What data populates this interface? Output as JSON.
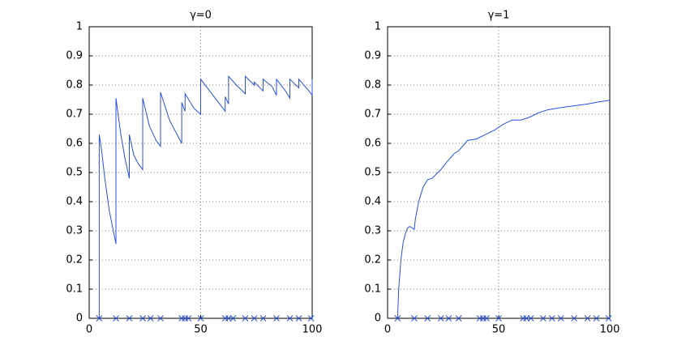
{
  "chart_data": [
    {
      "type": "line",
      "title": "γ=0",
      "xlim": [
        0,
        100
      ],
      "ylim": [
        0,
        1
      ],
      "xticks": [
        0,
        50,
        100
      ],
      "yticks": [
        0,
        0.1,
        0.2,
        0.3,
        0.4,
        0.5,
        0.6,
        0.7,
        0.8,
        0.9,
        1
      ],
      "grid": true,
      "series": [
        {
          "color": "#2a4fe0",
          "marker": "none",
          "x": [
            4.5,
            4.5,
            5.5,
            7,
            9,
            12,
            12,
            14,
            16,
            18,
            18,
            20,
            22,
            24,
            24,
            27,
            30,
            32,
            32,
            36,
            41.5,
            41.5,
            43,
            43,
            45,
            47,
            50,
            50,
            55,
            61,
            61,
            62.5,
            62.5,
            66,
            70,
            70,
            74,
            74,
            78,
            78,
            82,
            84,
            84,
            88,
            90,
            90,
            94,
            94,
            98,
            100,
            100
          ],
          "values": [
            0,
            0.63,
            0.58,
            0.48,
            0.37,
            0.255,
            0.755,
            0.64,
            0.55,
            0.48,
            0.63,
            0.56,
            0.53,
            0.51,
            0.755,
            0.66,
            0.61,
            0.59,
            0.775,
            0.68,
            0.6,
            0.74,
            0.71,
            0.77,
            0.745,
            0.72,
            0.7,
            0.82,
            0.77,
            0.71,
            0.76,
            0.735,
            0.83,
            0.8,
            0.77,
            0.83,
            0.8,
            0.81,
            0.78,
            0.82,
            0.795,
            0.765,
            0.82,
            0.78,
            0.755,
            0.82,
            0.79,
            0.82,
            0.785,
            0.765,
            0.82
          ]
        },
        {
          "color": "#2a4fe0",
          "marker": "x",
          "x": [
            4.5,
            12,
            18,
            24,
            27.5,
            32,
            41.5,
            43,
            44.5,
            50,
            61,
            62.5,
            64.5,
            70,
            74,
            78,
            84,
            90,
            94,
            99.5
          ],
          "values": [
            0,
            0,
            0,
            0,
            0,
            0,
            0,
            0,
            0,
            0,
            0,
            0,
            0,
            0,
            0,
            0,
            0,
            0,
            0,
            0
          ]
        }
      ]
    },
    {
      "type": "line",
      "title": "γ=1",
      "xlim": [
        0,
        100
      ],
      "ylim": [
        0,
        1
      ],
      "xticks": [
        0,
        50,
        100
      ],
      "yticks": [
        0,
        0.1,
        0.2,
        0.3,
        0.4,
        0.5,
        0.6,
        0.7,
        0.8,
        0.9,
        1
      ],
      "grid": true,
      "series": [
        {
          "color": "#2a4fe0",
          "marker": "none",
          "x": [
            4.5,
            5,
            6,
            7,
            8,
            9,
            10,
            12,
            12.5,
            14,
            16,
            18,
            20,
            24,
            26,
            30,
            32,
            36,
            40,
            44,
            48,
            52,
            56,
            60,
            64,
            68,
            72,
            76,
            80,
            85,
            90,
            95,
            100
          ],
          "values": [
            0,
            0.1,
            0.2,
            0.26,
            0.29,
            0.31,
            0.315,
            0.305,
            0.34,
            0.4,
            0.45,
            0.475,
            0.48,
            0.51,
            0.53,
            0.565,
            0.575,
            0.61,
            0.615,
            0.63,
            0.645,
            0.665,
            0.68,
            0.68,
            0.69,
            0.705,
            0.715,
            0.72,
            0.725,
            0.73,
            0.735,
            0.742,
            0.748
          ]
        },
        {
          "color": "#2a4fe0",
          "marker": "x",
          "x": [
            4.5,
            12,
            18,
            24,
            27.5,
            32,
            41.5,
            43,
            44.5,
            50,
            61,
            62.5,
            64.5,
            70,
            74,
            78,
            84,
            90,
            94,
            99.5
          ],
          "values": [
            0,
            0,
            0,
            0,
            0,
            0,
            0,
            0,
            0,
            0,
            0,
            0,
            0,
            0,
            0,
            0,
            0,
            0,
            0,
            0
          ]
        }
      ]
    }
  ]
}
